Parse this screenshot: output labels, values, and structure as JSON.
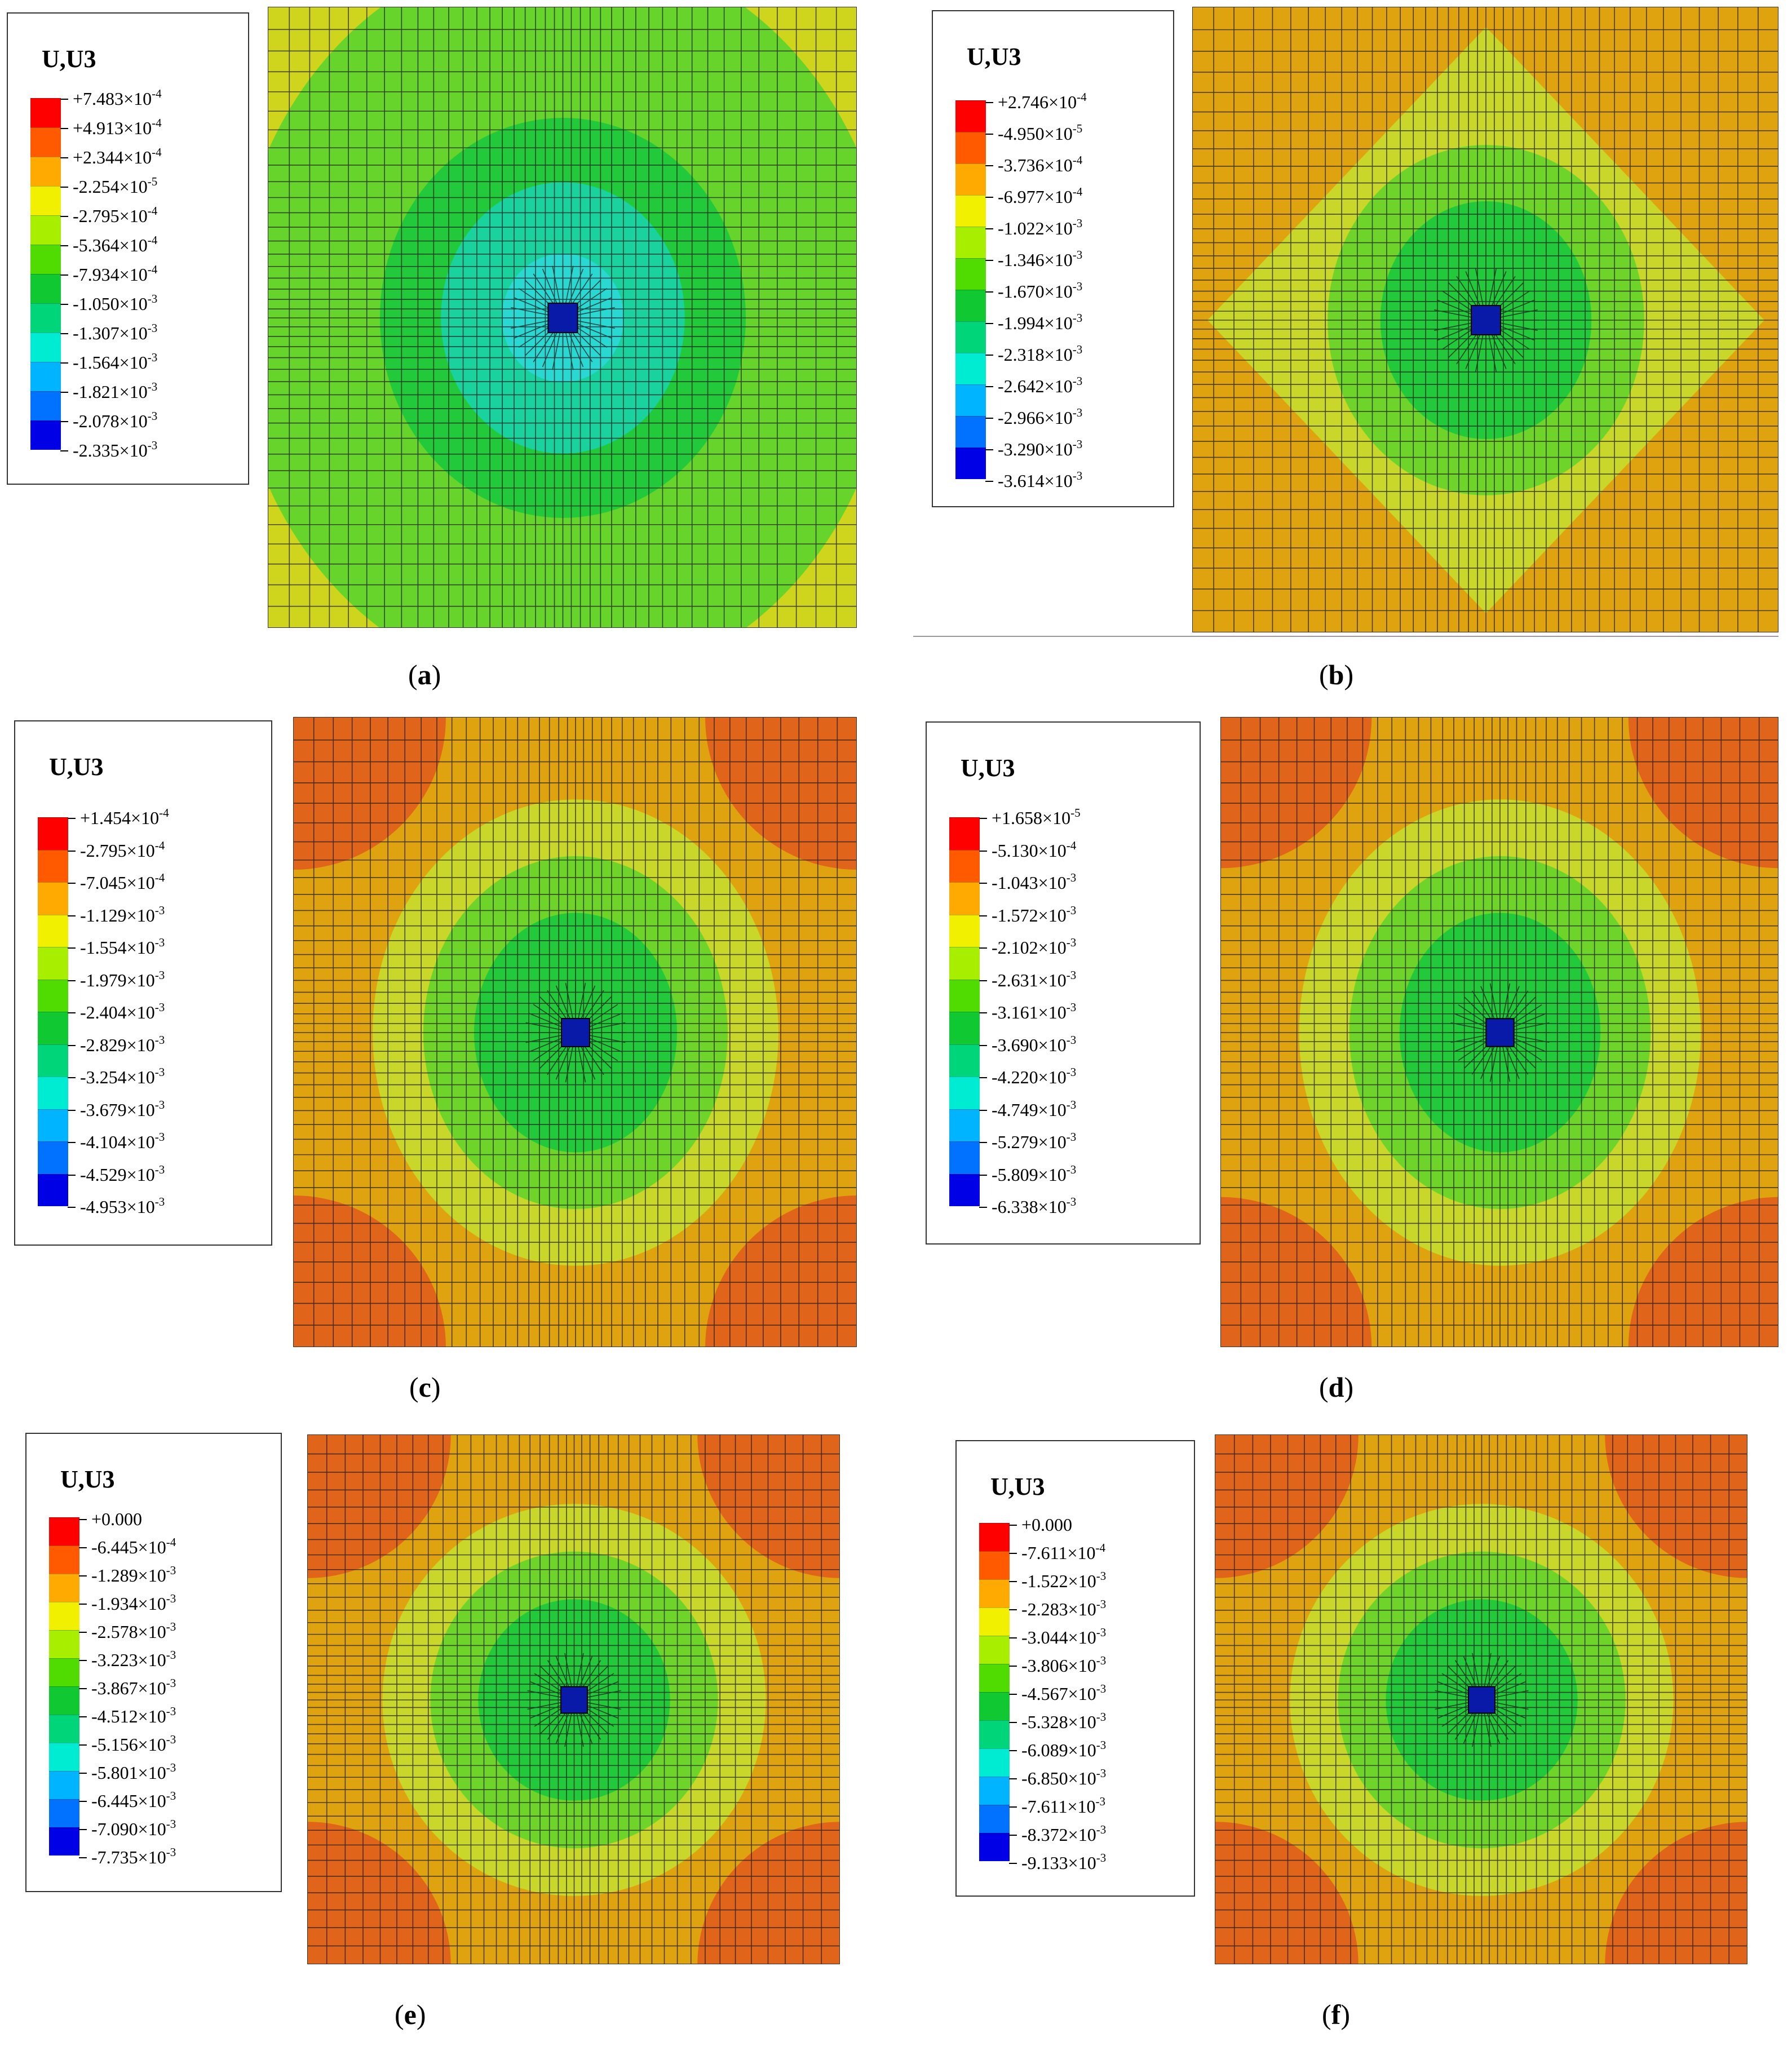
{
  "panels": [
    {
      "id": "a",
      "caption_prefix": "(",
      "caption_letter": "a",
      "caption_suffix": ")",
      "legend_title": "U,U3",
      "legend_labels": [
        "+7.483×10-4",
        "+4.913×10-4",
        "+2.344×10-4",
        "-2.254×10-5",
        "-2.795×10-4",
        "-5.364×10-4",
        "-7.934×10-4",
        "-1.050×10-3",
        "-1.307×10-3",
        "-1.564×10-3",
        "-1.821×10-3",
        "-2.078×10-3",
        "-2.335×10-3"
      ],
      "plot_colors": {
        "bg": "#cfd41c",
        "ring_outer": "#66d42a",
        "ring_mid": "#22c93a",
        "ring_inner": "#19d29e",
        "core": "#2ad8d2",
        "corner": "#cfd41c",
        "center": "#0a1aa8"
      }
    },
    {
      "id": "b",
      "caption_prefix": "(",
      "caption_letter": "b",
      "caption_suffix": ")",
      "legend_title": "U,U3",
      "legend_labels": [
        "+2.746×10-4",
        "-4.950×10-5",
        "-3.736×10-4",
        "-6.977×10-4",
        "-1.022×10-3",
        "-1.346×10-3",
        "-1.670×10-3",
        "-1.994×10-3",
        "-2.318×10-3",
        "-2.642×10-3",
        "-2.966×10-3",
        "-3.290×10-3",
        "-3.614×10-3"
      ],
      "plot_colors": {
        "bg": "#e0a310",
        "ring_outer": "#c9d62a",
        "ring_mid": "#6ed42a",
        "ring_inner": "#22c93a",
        "core": "#22c93a",
        "corner": "#e0a310",
        "center": "#0a1aa8"
      }
    },
    {
      "id": "c",
      "caption_prefix": "(",
      "caption_letter": "c",
      "caption_suffix": ")",
      "legend_title": "U,U3",
      "legend_labels": [
        "+1.454×10-4",
        "-2.795×10-4",
        "-7.045×10-4",
        "-1.129×10-3",
        "-1.554×10-3",
        "-1.979×10-3",
        "-2.404×10-3",
        "-2.829×10-3",
        "-3.254×10-3",
        "-3.679×10-3",
        "-4.104×10-3",
        "-4.529×10-3",
        "-4.953×10-3"
      ],
      "plot_colors": {
        "bg": "#e0a310",
        "ring_outer": "#c9d62a",
        "ring_mid": "#6ed42a",
        "ring_inner": "#22c93a",
        "core": "#22c93a",
        "corner": "#e0651a",
        "center": "#0a1aa8"
      }
    },
    {
      "id": "d",
      "caption_prefix": "(",
      "caption_letter": "d",
      "caption_suffix": ")",
      "legend_title": "U,U3",
      "legend_labels": [
        "+1.658×10-5",
        "-5.130×10-4",
        "-1.043×10-3",
        "-1.572×10-3",
        "-2.102×10-3",
        "-2.631×10-3",
        "-3.161×10-3",
        "-3.690×10-3",
        "-4.220×10-3",
        "-4.749×10-3",
        "-5.279×10-3",
        "-5.809×10-3",
        "-6.338×10-3"
      ],
      "plot_colors": {
        "bg": "#e0a310",
        "ring_outer": "#c9d62a",
        "ring_mid": "#6ed42a",
        "ring_inner": "#22c93a",
        "core": "#22c93a",
        "corner": "#e0651a",
        "center": "#0a1aa8"
      }
    },
    {
      "id": "e",
      "caption_prefix": "(",
      "caption_letter": "e",
      "caption_suffix": ")",
      "legend_title": "U,U3",
      "legend_labels": [
        "+0.000",
        "-6.445×10-4",
        "-1.289×10-3",
        "-1.934×10-3",
        "-2.578×10-3",
        "-3.223×10-3",
        "-3.867×10-3",
        "-4.512×10-3",
        "-5.156×10-3",
        "-5.801×10-3",
        "-6.445×10-3",
        "-7.090×10-3",
        "-7.735×10-3"
      ],
      "plot_colors": {
        "bg": "#e0a310",
        "ring_outer": "#c9d62a",
        "ring_mid": "#6ed42a",
        "ring_inner": "#22c93a",
        "core": "#22c93a",
        "corner": "#e0651a",
        "center": "#0a1aa8"
      }
    },
    {
      "id": "f",
      "caption_prefix": "(",
      "caption_letter": "f",
      "caption_suffix": ")",
      "legend_title": "U,U3",
      "legend_labels": [
        "+0.000",
        "-7.611×10-4",
        "-1.522×10-3",
        "-2.283×10-3",
        "-3.044×10-3",
        "-3.806×10-3",
        "-4.567×10-3",
        "-5.328×10-3",
        "-6.089×10-3",
        "-6.850×10-3",
        "-7.611×10-3",
        "-8.372×10-3",
        "-9.133×10-3"
      ],
      "plot_colors": {
        "bg": "#e0a310",
        "ring_outer": "#c9d62a",
        "ring_mid": "#6ed42a",
        "ring_inner": "#22c93a",
        "core": "#22c93a",
        "corner": "#e0651a",
        "center": "#0a1aa8"
      }
    }
  ],
  "scale_colors": [
    "#ff0000",
    "#ff5a00",
    "#ffaa00",
    "#f0f000",
    "#a8ee00",
    "#50dc00",
    "#10c832",
    "#00d57a",
    "#00ecd2",
    "#00b4ff",
    "#0072ff",
    "#0034ff",
    "#0000e6"
  ]
}
